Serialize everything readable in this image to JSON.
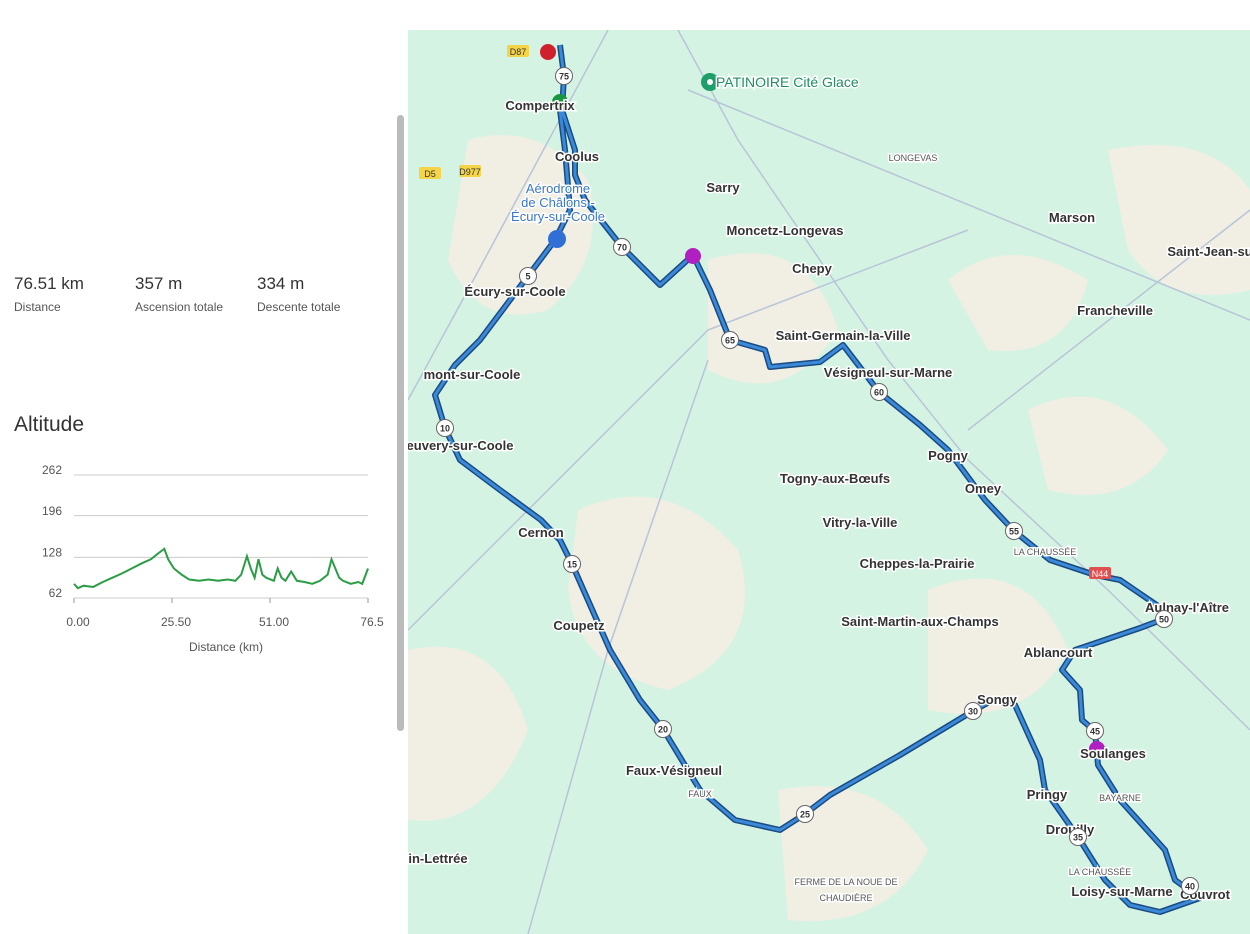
{
  "stats": [
    {
      "value": "76.51 km",
      "label": "Distance"
    },
    {
      "value": "357 m",
      "label": "Ascension totale"
    },
    {
      "value": "334 m",
      "label": "Descente totale"
    }
  ],
  "chart_data": {
    "type": "line",
    "title": "Altitude",
    "x_label": "Distance (km)",
    "x": [
      0,
      1,
      2.5,
      5,
      7.5,
      10,
      12.5,
      15,
      17.5,
      20,
      22,
      23.5,
      24.5,
      26,
      28,
      30,
      32.5,
      35,
      37.5,
      40,
      42,
      43.5,
      45,
      46,
      47,
      48,
      49,
      50,
      52,
      53,
      54,
      55,
      56.5,
      58,
      60,
      62,
      64,
      66,
      67,
      68,
      69,
      70,
      72,
      74,
      75,
      76.5
    ],
    "series": [
      {
        "name": "Altitude",
        "color": "#2a9d45",
        "values": [
          85,
          78,
          82,
          80,
          88,
          95,
          102,
          110,
          118,
          125,
          135,
          142,
          125,
          110,
          100,
          92,
          90,
          92,
          90,
          92,
          90,
          100,
          130,
          110,
          95,
          125,
          100,
          95,
          90,
          110,
          95,
          90,
          105,
          90,
          88,
          85,
          90,
          100,
          125,
          110,
          95,
          90,
          85,
          88,
          85,
          110
        ]
      }
    ],
    "xlim": [
      0,
      76.5
    ],
    "xticks": [
      {
        "value": 0,
        "label": "0.00"
      },
      {
        "value": 25.5,
        "label": "25.50"
      },
      {
        "value": 51,
        "label": "51.00"
      },
      76.5
    ],
    "ylim": [
      62,
      262
    ],
    "yticks": [
      62,
      128,
      196,
      262
    ],
    "grid": true
  },
  "map": {
    "poi": "PATINOIRE Cité Glace",
    "airport": [
      "Aérodrome",
      "de Châlons -",
      "Écury-sur-Coole"
    ],
    "places": [
      "Compertrix",
      "Coolus",
      "Sarry",
      "Moncetz-Longevas",
      "Chepy",
      "Marson",
      "Saint-Jean-su",
      "Francheville",
      "Écury-sur-Coole",
      "Saint-Germain-la-Ville",
      "Vésigneul-sur-Marne",
      "mont-sur-Coole",
      "euvery-sur-Coole",
      "Pogny",
      "Omey",
      "Togny-aux-Bœufs",
      "Vitry-la-Ville",
      "Cernon",
      "Cheppes-la-Prairie",
      "Saint-Martin-aux-Champs",
      "Aulnay-l'Aître",
      "Ablancourt",
      "Coupetz",
      "Songy",
      "Soulanges",
      "Faux-Vésigneul",
      "Pringy",
      "Drouilly",
      "Loisy-sur-Marne",
      "Couvrot",
      "in-Lettrée"
    ],
    "localities": [
      "LONGEVAS",
      "LA CHAUSSÉE",
      "BAYARNE",
      "LA CHAUSSÉE",
      "FERME DE LA NOUE DE",
      "CHAUDIÈRE",
      "FAUX"
    ],
    "roads": [
      "D87",
      "D5",
      "D977",
      "N44"
    ],
    "km_markers": [
      "75",
      "70",
      "5",
      "65",
      "60",
      "10",
      "55",
      "15",
      "50",
      "20",
      "30",
      "45",
      "25",
      "35",
      "40"
    ]
  }
}
